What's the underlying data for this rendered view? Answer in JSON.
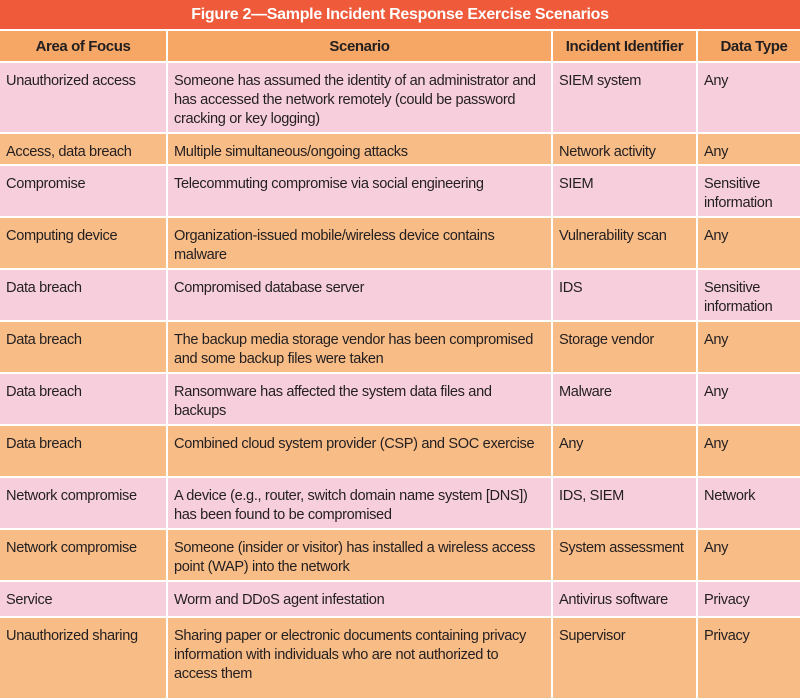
{
  "title": "Figure 2—Sample Incident Response Exercise Scenarios",
  "colors": {
    "title_bg": "#ee5a3a",
    "header_bg": "#f6a765",
    "row_pink": "#f7cfdc",
    "row_orange": "#f8bc87"
  },
  "columns": [
    "Area of Focus",
    "Scenario",
    "Incident Identifier",
    "Data Type"
  ],
  "rows": [
    [
      "Unauthorized access",
      "Someone has assumed the identity of an administrator and has accessed the network remotely (could be password cracking or key logging)",
      "SIEM system",
      "Any"
    ],
    [
      "Access, data breach",
      "Multiple simultaneous/ongoing attacks",
      "Network activity",
      "Any"
    ],
    [
      "Compromise",
      "Telecommuting compromise via social engineering",
      "SIEM",
      "Sensitive information"
    ],
    [
      "Computing device",
      "Organization-issued mobile/wireless device contains malware",
      "Vulnerability scan",
      "Any"
    ],
    [
      "Data breach",
      "Compromised database server",
      "IDS",
      "Sensitive information"
    ],
    [
      "Data breach",
      "The backup media storage vendor has been compromised and some backup files were taken",
      "Storage vendor",
      "Any"
    ],
    [
      "Data breach",
      "Ransomware has affected the system data files and backups",
      "Malware",
      "Any"
    ],
    [
      "Data breach",
      "Combined cloud system provider (CSP) and SOC exercise",
      "Any",
      "Any"
    ],
    [
      "Network compromise",
      "A device (e.g., router, switch domain name system [DNS]) has been found to be compromised",
      "IDS, SIEM",
      "Network"
    ],
    [
      "Network compromise",
      "Someone (insider or visitor) has installed a wireless access point (WAP) into the network",
      "System assessment",
      "Any"
    ],
    [
      "Service",
      "Worm and DDoS agent infestation",
      "Antivirus software",
      "Privacy"
    ],
    [
      "Unauthorized sharing",
      "Sharing paper or electronic documents containing privacy information with individuals who are not authorized to access them",
      "Supervisor",
      "Privacy"
    ]
  ]
}
